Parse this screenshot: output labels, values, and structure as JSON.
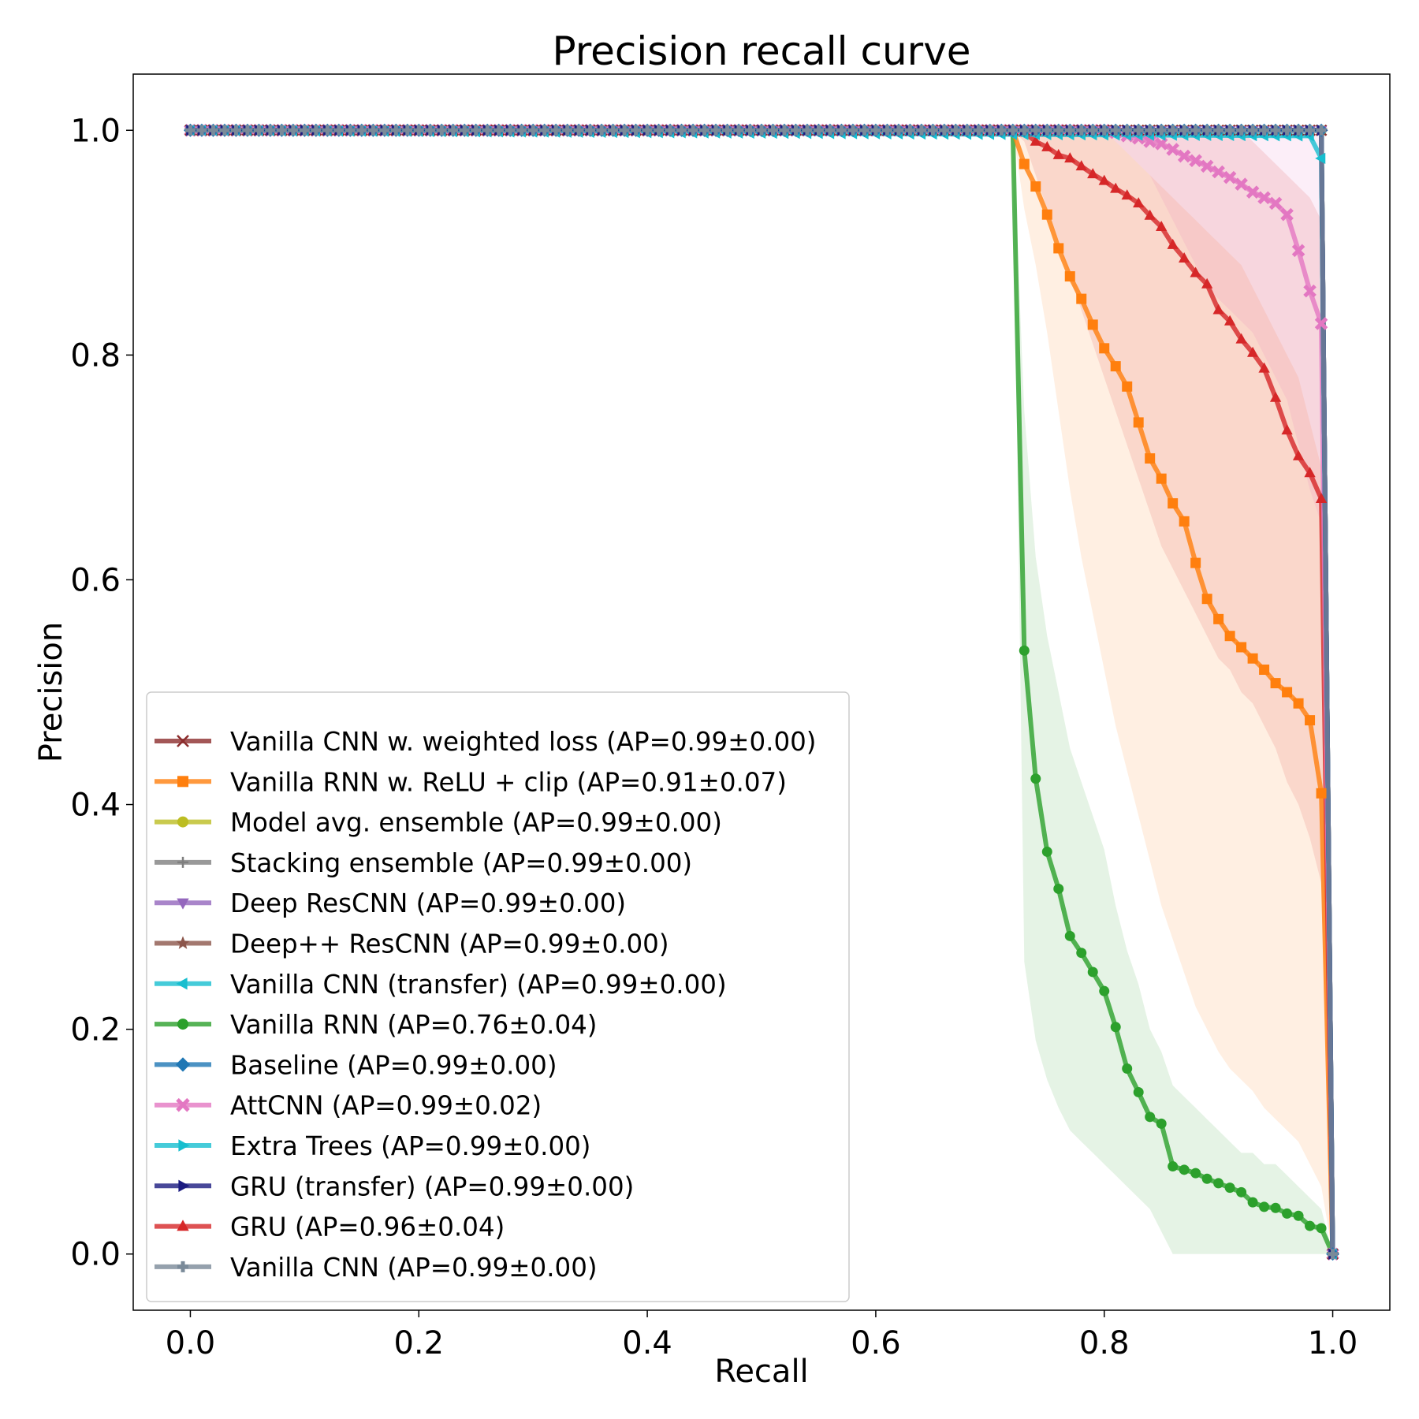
{
  "chart_data": {
    "type": "line",
    "title": "Precision recall curve",
    "xlabel": "Recall",
    "ylabel": "Precision",
    "xlim": [
      -0.05,
      1.05
    ],
    "ylim": [
      -0.05,
      1.05
    ],
    "xticks": [
      0.0,
      0.2,
      0.4,
      0.6,
      0.8,
      1.0
    ],
    "yticks": [
      0.0,
      0.2,
      0.4,
      0.6,
      0.8,
      1.0
    ],
    "xtick_labels": [
      "0.0",
      "0.2",
      "0.4",
      "0.6",
      "0.8",
      "1.0"
    ],
    "ytick_labels": [
      "0.0",
      "0.2",
      "0.4",
      "0.6",
      "0.8",
      "1.0"
    ],
    "grid": false,
    "legend_position": "lower-left",
    "series": [
      {
        "name": "Vanilla CNN w. weighted loss (AP=0.99±0.00)",
        "color": "#8c2d2d",
        "marker": "x",
        "x": [
          0.0,
          0.99,
          1.0
        ],
        "y": [
          1.0,
          1.0,
          0.0
        ]
      },
      {
        "name": "Vanilla RNN w. ReLU + clip (AP=0.91±0.07)",
        "color": "#ff7f0e",
        "marker": "square",
        "x": [
          0.0,
          0.72,
          0.73,
          0.74,
          0.75,
          0.76,
          0.77,
          0.78,
          0.79,
          0.8,
          0.81,
          0.82,
          0.83,
          0.84,
          0.85,
          0.86,
          0.87,
          0.88,
          0.89,
          0.9,
          0.91,
          0.92,
          0.93,
          0.94,
          0.95,
          0.96,
          0.97,
          0.98,
          0.99,
          1.0
        ],
        "y": [
          1.0,
          1.0,
          0.97,
          0.95,
          0.925,
          0.895,
          0.87,
          0.85,
          0.827,
          0.806,
          0.79,
          0.772,
          0.74,
          0.708,
          0.69,
          0.668,
          0.652,
          0.615,
          0.583,
          0.565,
          0.55,
          0.54,
          0.53,
          0.52,
          0.508,
          0.5,
          0.49,
          0.475,
          0.41,
          0.0
        ],
        "band_lower": [
          1.0,
          1.0,
          0.93,
          0.88,
          0.82,
          0.75,
          0.68,
          0.62,
          0.57,
          0.52,
          0.47,
          0.43,
          0.39,
          0.35,
          0.31,
          0.28,
          0.25,
          0.22,
          0.2,
          0.18,
          0.165,
          0.155,
          0.145,
          0.13,
          0.12,
          0.11,
          0.1,
          0.08,
          0.06,
          0.0
        ],
        "band_upper": [
          1.0,
          1.0,
          1.0,
          1.0,
          1.0,
          1.0,
          1.0,
          1.0,
          1.0,
          1.0,
          0.99,
          0.98,
          0.97,
          0.96,
          0.95,
          0.94,
          0.93,
          0.92,
          0.91,
          0.9,
          0.89,
          0.88,
          0.86,
          0.84,
          0.82,
          0.8,
          0.78,
          0.74,
          0.7,
          0.0
        ]
      },
      {
        "name": "Model avg. ensemble (AP=0.99±0.00)",
        "color": "#bcbd22",
        "marker": "circle",
        "x": [
          0.0,
          0.99,
          1.0
        ],
        "y": [
          1.0,
          1.0,
          0.0
        ]
      },
      {
        "name": "Stacking ensemble (AP=0.99±0.00)",
        "color": "#7f7f7f",
        "marker": "plus",
        "x": [
          0.0,
          0.99,
          1.0
        ],
        "y": [
          1.0,
          1.0,
          0.0
        ]
      },
      {
        "name": "Deep ResCNN (AP=0.99±0.00)",
        "color": "#9467bd",
        "marker": "triangle-down",
        "x": [
          0.0,
          0.99,
          1.0
        ],
        "y": [
          1.0,
          1.0,
          0.0
        ]
      },
      {
        "name": "Deep++ ResCNN (AP=0.99±0.00)",
        "color": "#8c564b",
        "marker": "star",
        "x": [
          0.0,
          0.99,
          1.0
        ],
        "y": [
          1.0,
          1.0,
          0.0
        ]
      },
      {
        "name": "Vanilla CNN (transfer) (AP=0.99±0.00)",
        "color": "#17becf",
        "marker": "triangle-left",
        "x": [
          0.0,
          0.98,
          0.99,
          1.0
        ],
        "y": [
          1.0,
          0.995,
          0.975,
          0.0
        ]
      },
      {
        "name": "Vanilla RNN (AP=0.76±0.04)",
        "color": "#2ca02c",
        "marker": "circle",
        "x": [
          0.0,
          0.72,
          0.73,
          0.74,
          0.75,
          0.76,
          0.77,
          0.78,
          0.79,
          0.8,
          0.81,
          0.82,
          0.83,
          0.84,
          0.85,
          0.86,
          0.87,
          0.88,
          0.89,
          0.9,
          0.91,
          0.92,
          0.93,
          0.94,
          0.95,
          0.96,
          0.97,
          0.98,
          0.99,
          1.0
        ],
        "y": [
          1.0,
          1.0,
          0.537,
          0.423,
          0.358,
          0.325,
          0.283,
          0.268,
          0.251,
          0.234,
          0.202,
          0.165,
          0.144,
          0.122,
          0.116,
          0.078,
          0.075,
          0.072,
          0.067,
          0.063,
          0.059,
          0.055,
          0.046,
          0.042,
          0.041,
          0.036,
          0.034,
          0.025,
          0.023,
          0.0
        ],
        "band_lower": [
          1.0,
          1.0,
          0.26,
          0.19,
          0.155,
          0.13,
          0.11,
          0.1,
          0.09,
          0.08,
          0.07,
          0.06,
          0.05,
          0.04,
          0.02,
          0.0,
          0.0,
          0.0,
          0.0,
          0.0,
          0.0,
          0.0,
          0.0,
          0.0,
          0.0,
          0.0,
          0.0,
          0.0,
          0.0,
          0.0
        ],
        "band_upper": [
          1.0,
          1.0,
          0.75,
          0.62,
          0.55,
          0.5,
          0.45,
          0.42,
          0.39,
          0.36,
          0.31,
          0.27,
          0.24,
          0.2,
          0.18,
          0.15,
          0.14,
          0.13,
          0.12,
          0.11,
          0.1,
          0.09,
          0.09,
          0.08,
          0.08,
          0.07,
          0.06,
          0.05,
          0.04,
          0.0
        ]
      },
      {
        "name": "Baseline (AP=0.99±0.00)",
        "color": "#1f77b4",
        "marker": "diamond",
        "x": [
          0.0,
          0.99,
          1.0
        ],
        "y": [
          1.0,
          1.0,
          0.0
        ]
      },
      {
        "name": "AttCNN (AP=0.99±0.02)",
        "color": "#e377c2",
        "marker": "x-thick",
        "x": [
          0.0,
          0.8,
          0.81,
          0.82,
          0.83,
          0.84,
          0.85,
          0.86,
          0.87,
          0.88,
          0.89,
          0.9,
          0.91,
          0.92,
          0.93,
          0.94,
          0.95,
          0.96,
          0.97,
          0.98,
          0.99,
          1.0
        ],
        "y": [
          1.0,
          1.0,
          0.998,
          0.995,
          0.993,
          0.99,
          0.988,
          0.983,
          0.977,
          0.973,
          0.968,
          0.963,
          0.958,
          0.952,
          0.945,
          0.94,
          0.935,
          0.925,
          0.893,
          0.857,
          0.828,
          0.0
        ],
        "band_lower": [
          1.0,
          1.0,
          0.99,
          0.98,
          0.97,
          0.96,
          0.94,
          0.92,
          0.9,
          0.88,
          0.86,
          0.85,
          0.84,
          0.83,
          0.82,
          0.8,
          0.78,
          0.76,
          0.72,
          0.68,
          0.65,
          0.0
        ],
        "band_upper": [
          1.0,
          1.0,
          1.0,
          1.0,
          1.0,
          1.0,
          1.0,
          1.0,
          1.0,
          1.0,
          1.0,
          1.0,
          1.0,
          1.0,
          1.0,
          1.0,
          1.0,
          1.0,
          1.0,
          1.0,
          1.0,
          0.0
        ]
      },
      {
        "name": "Extra Trees (AP=0.99±0.00)",
        "color": "#17becf",
        "marker": "triangle-right",
        "x": [
          0.0,
          0.99,
          1.0
        ],
        "y": [
          1.0,
          1.0,
          0.0
        ]
      },
      {
        "name": "GRU (transfer) (AP=0.99±0.00)",
        "color": "#1a1a80",
        "marker": "triangle-right",
        "x": [
          0.0,
          0.99,
          1.0
        ],
        "y": [
          1.0,
          1.0,
          0.0
        ]
      },
      {
        "name": "GRU (AP=0.96±0.04)",
        "color": "#d62728",
        "marker": "triangle-up",
        "x": [
          0.0,
          0.72,
          0.73,
          0.74,
          0.75,
          0.76,
          0.77,
          0.78,
          0.79,
          0.8,
          0.81,
          0.82,
          0.83,
          0.84,
          0.85,
          0.86,
          0.87,
          0.88,
          0.89,
          0.9,
          0.91,
          0.92,
          0.93,
          0.94,
          0.95,
          0.96,
          0.97,
          0.98,
          0.99,
          1.0
        ],
        "y": [
          1.0,
          1.0,
          0.998,
          0.99,
          0.985,
          0.978,
          0.975,
          0.968,
          0.961,
          0.955,
          0.948,
          0.942,
          0.935,
          0.924,
          0.914,
          0.898,
          0.886,
          0.873,
          0.863,
          0.84,
          0.83,
          0.814,
          0.802,
          0.788,
          0.762,
          0.733,
          0.71,
          0.695,
          0.672,
          0.0
        ],
        "band_lower": [
          1.0,
          1.0,
          0.99,
          0.96,
          0.93,
          0.9,
          0.87,
          0.84,
          0.81,
          0.78,
          0.75,
          0.72,
          0.69,
          0.66,
          0.63,
          0.61,
          0.59,
          0.57,
          0.55,
          0.53,
          0.52,
          0.5,
          0.49,
          0.47,
          0.45,
          0.42,
          0.4,
          0.37,
          0.33,
          0.0
        ],
        "band_upper": [
          1.0,
          1.0,
          1.0,
          1.0,
          1.0,
          1.0,
          1.0,
          1.0,
          1.0,
          1.0,
          1.0,
          1.0,
          1.0,
          1.0,
          1.0,
          1.0,
          1.0,
          1.0,
          1.0,
          1.0,
          1.0,
          1.0,
          0.99,
          0.98,
          0.97,
          0.96,
          0.95,
          0.94,
          0.92,
          0.0
        ]
      },
      {
        "name": "Vanilla CNN (AP=0.99±0.00)",
        "color": "#7a8a99",
        "marker": "plus-thick",
        "x": [
          0.0,
          0.99,
          1.0
        ],
        "y": [
          1.0,
          1.0,
          0.0
        ]
      }
    ]
  }
}
